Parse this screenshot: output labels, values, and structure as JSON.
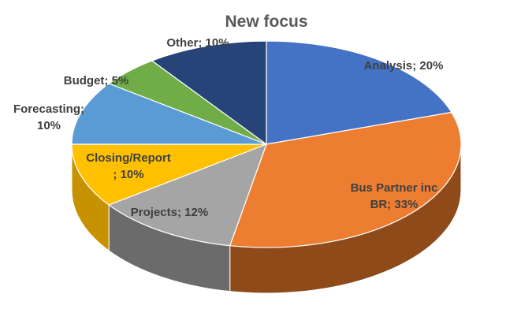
{
  "chart_data": {
    "type": "pie",
    "title": "New focus",
    "three_d": true,
    "legend": "none",
    "slices": [
      {
        "category": "Analysis",
        "value": 20,
        "label": "Analysis; 20%",
        "color": "#4472C4",
        "side_color": "#2F5597"
      },
      {
        "category": "Bus Partner inc BR",
        "value": 33,
        "label": "Bus Partner inc BR; 33%",
        "color": "#ED7D31",
        "side_color": "#8F4A1A"
      },
      {
        "category": "Projects",
        "value": 12,
        "label": "Projects; 12%",
        "color": "#A5A5A5",
        "side_color": "#6B6B6B"
      },
      {
        "category": "Closing/Report",
        "value": 10,
        "label": "Closing/Report ; 10%",
        "color": "#FFC000",
        "side_color": "#C79200"
      },
      {
        "category": "Forecasting",
        "value": 10,
        "label": "Forecasting; 10%",
        "color": "#5B9BD5",
        "side_color": "#3A6E9E"
      },
      {
        "category": "Budget",
        "value": 5,
        "label": "Budget; 5%",
        "color": "#70AD47",
        "side_color": "#4A7A2E"
      },
      {
        "category": "Other",
        "value": 10,
        "label": "Other; 10%",
        "color": "#264478",
        "side_color": "#18305A"
      }
    ]
  }
}
